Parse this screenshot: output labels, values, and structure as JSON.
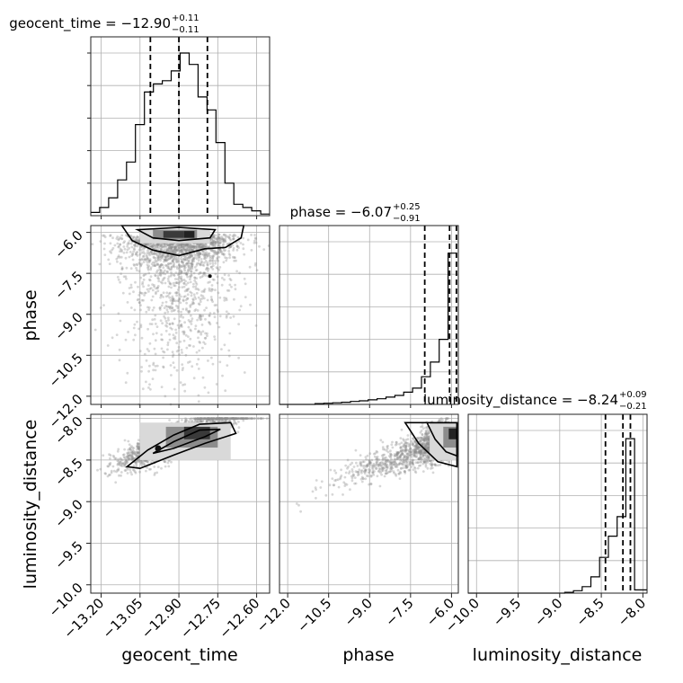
{
  "chart_data": {
    "type": "corner",
    "parameters": [
      "geocent_time",
      "phase",
      "luminosity_distance"
    ],
    "axis_labels": {
      "geocent_time": "geocent_time",
      "phase": "phase",
      "luminosity_distance": "luminosity_distance"
    },
    "titles": [
      {
        "param": "geocent_time",
        "label": "geocent_time = −12.90",
        "plus": "+0.11",
        "minus": "−0.11"
      },
      {
        "param": "phase",
        "label": "phase = −6.07",
        "plus": "+0.25",
        "minus": "−0.91"
      },
      {
        "param": "luminosity_distance",
        "label": "luminosity_distance = −8.24",
        "plus": "+0.09",
        "minus": "−0.21"
      }
    ],
    "ranges": {
      "geocent_time": [
        -13.24,
        -12.55
      ],
      "phase": [
        -12.3,
        -5.75
      ],
      "luminosity_distance": [
        -10.1,
        -7.95
      ]
    },
    "ticks": {
      "geocent_time": [
        -13.2,
        -13.05,
        -12.9,
        -12.75,
        -12.6
      ],
      "phase": [
        -12.0,
        -10.5,
        -9.0,
        -7.5,
        -6.0
      ],
      "luminosity_distance": [
        -10.0,
        -9.5,
        -9.0,
        -8.5,
        -8.0
      ]
    },
    "tick_labels": {
      "geocent_time": [
        "−13.20",
        "−13.05",
        "−12.90",
        "−12.75",
        "−12.60"
      ],
      "phase": [
        "−12.0",
        "−10.5",
        "−9.0",
        "−7.5",
        "−6.0"
      ],
      "luminosity_distance": [
        "−10.0",
        "−9.5",
        "−9.0",
        "−8.5",
        "−8.0"
      ]
    },
    "quantiles": {
      "geocent_time": [
        -13.01,
        -12.9,
        -12.79
      ],
      "phase": [
        -6.98,
        -6.07,
        -5.82
      ],
      "luminosity_distance": [
        -8.45,
        -8.24,
        -8.15
      ]
    },
    "histograms": {
      "geocent_time": {
        "edges": [
          -13.24,
          -13.2055,
          -13.171,
          -13.1365,
          -13.102,
          -13.0675,
          -13.033,
          -12.9985,
          -12.964,
          -12.9295,
          -12.895,
          -12.8605,
          -12.826,
          -12.7915,
          -12.757,
          -12.7225,
          -12.688,
          -12.6535,
          -12.619,
          -12.5845,
          -12.55
        ],
        "counts": [
          0.02,
          0.05,
          0.11,
          0.22,
          0.33,
          0.56,
          0.76,
          0.81,
          0.83,
          0.89,
          1.0,
          0.93,
          0.73,
          0.65,
          0.45,
          0.2,
          0.07,
          0.05,
          0.03,
          0.01
        ]
      },
      "phase": {
        "edges": [
          -12.3,
          -11.975,
          -11.65,
          -11.325,
          -11.0,
          -10.675,
          -10.35,
          -10.025,
          -9.7,
          -9.375,
          -9.05,
          -8.725,
          -8.4,
          -8.075,
          -7.75,
          -7.425,
          -7.1,
          -6.775,
          -6.45,
          -6.125,
          -5.8
        ],
        "counts": [
          0.0,
          0.0,
          0.0,
          0.0,
          0.005,
          0.007,
          0.01,
          0.013,
          0.018,
          0.022,
          0.028,
          0.035,
          0.045,
          0.055,
          0.075,
          0.1,
          0.17,
          0.26,
          0.4,
          0.93
        ]
      },
      "luminosity_distance": {
        "edges": [
          -10.2,
          -10.095,
          -9.99,
          -9.885,
          -9.78,
          -9.675,
          -9.57,
          -9.465,
          -9.36,
          -9.255,
          -9.15,
          -9.045,
          -8.94,
          -8.835,
          -8.73,
          -8.625,
          -8.52,
          -8.415,
          -8.31,
          -8.205,
          -8.1,
          -7.95
        ],
        "counts": [
          0.0,
          0.0,
          0.0,
          0.0,
          0.0,
          0.0,
          0.0,
          0.0,
          0.0,
          0.0,
          0.0,
          0.0,
          0.005,
          0.015,
          0.04,
          0.1,
          0.22,
          0.35,
          0.47,
          0.95,
          0.02
        ]
      }
    },
    "grid": true,
    "colors": {
      "points": "#8c8c8c",
      "contour": "#000000",
      "hist": "#000000"
    }
  }
}
